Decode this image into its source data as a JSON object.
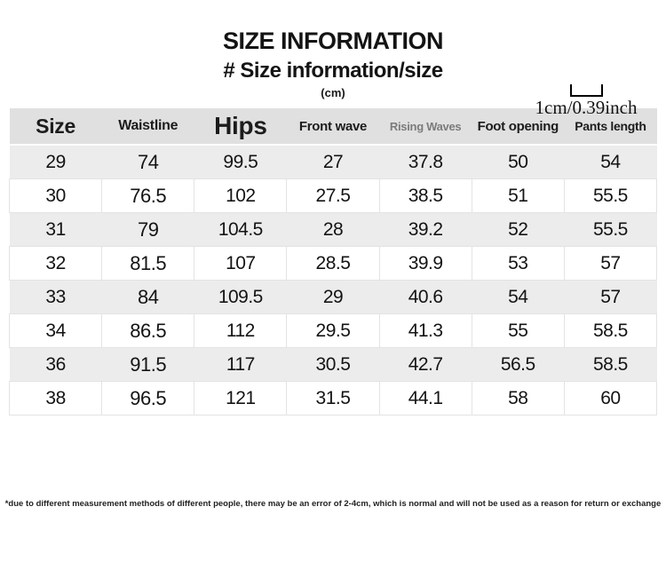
{
  "header": {
    "title": "SIZE INFORMATION",
    "subtitle": "# Size information/size",
    "unit": "(cm)",
    "scale_label": "1cm/0.39inch"
  },
  "icons": {
    "measure_bracket": "measure-bracket-icon"
  },
  "colors": {
    "header_row_bg": "#e0e0e0",
    "shaded_row_bg": "#ececec",
    "plain_row_border": "#e3e3e3",
    "muted_header_text": "#7b7b7b",
    "text": "#141414"
  },
  "chart_data": {
    "type": "table",
    "title": "SIZE INFORMATION",
    "unit": "cm",
    "columns": [
      "Size",
      "Waistline",
      "Hips",
      "Front wave",
      "Rising Waves",
      "Foot opening",
      "Pants length"
    ],
    "rows": [
      [
        "29",
        "74",
        "99.5",
        "27",
        "37.8",
        "50",
        "54"
      ],
      [
        "30",
        "76.5",
        "102",
        "27.5",
        "38.5",
        "51",
        "55.5"
      ],
      [
        "31",
        "79",
        "104.5",
        "28",
        "39.2",
        "52",
        "55.5"
      ],
      [
        "32",
        "81.5",
        "107",
        "28.5",
        "39.9",
        "53",
        "57"
      ],
      [
        "33",
        "84",
        "109.5",
        "29",
        "40.6",
        "54",
        "57"
      ],
      [
        "34",
        "86.5",
        "112",
        "29.5",
        "41.3",
        "55",
        "58.5"
      ],
      [
        "36",
        "91.5",
        "117",
        "30.5",
        "42.7",
        "56.5",
        "58.5"
      ],
      [
        "38",
        "96.5",
        "121",
        "31.5",
        "44.1",
        "58",
        "60"
      ]
    ],
    "row_shading": "header gray, then alternating light-gray / white rows starting gray",
    "legend_position": "none",
    "grid": "borders only on white rows"
  },
  "footnote": "*due to different measurement methods of different people, there may be an error of 2-4cm, which is normal and will not be used as a reason for return or exchange"
}
